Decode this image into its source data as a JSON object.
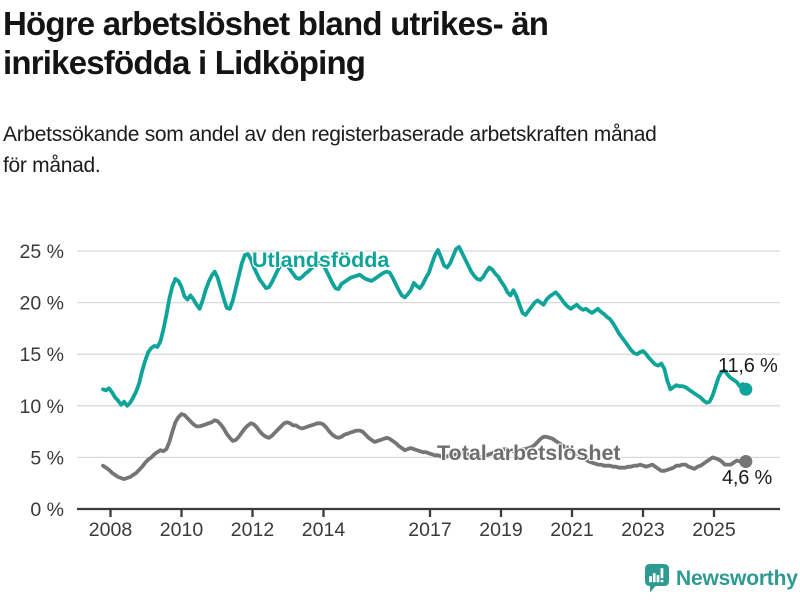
{
  "header": {
    "title_line1": "Högre arbetslöshet bland utrikes- än",
    "title_line2": "inrikesfödda i Lidköping",
    "subtitle_line1": "Arbetssökande som andel av den registerbaserade arbetskraften månad",
    "subtitle_line2": "för månad."
  },
  "branding": {
    "logo_text": "Newsworthy",
    "logo_color": "#2e9a91",
    "logo_icon": "newsworthy-speech-bubble-bar-chart-icon"
  },
  "chart_data": {
    "type": "line",
    "unit": "percent",
    "x_start": "2008-01",
    "x_interval": "month",
    "grid": "horizontal",
    "legend_position": "inline-labels",
    "ylim": [
      0,
      26.5
    ],
    "y_ticks": [
      0,
      5,
      10,
      15,
      20,
      25
    ],
    "y_tick_labels": [
      "0 %",
      "5 %",
      "10 %",
      "15 %",
      "20 %",
      "25 %"
    ],
    "x_tick_years": [
      2008,
      2010,
      2012,
      2014,
      2017,
      2019,
      2021,
      2023,
      2025
    ],
    "x_tick_labels": [
      "2008",
      "2010",
      "2012",
      "2014",
      "2017",
      "2019",
      "2021",
      "2023",
      "2025"
    ],
    "colors": {
      "grid": "#d9d9d9",
      "axis": "#3c3c3c",
      "tick_text": "#3a3a3a",
      "annotation_text": "#1a1a1a"
    },
    "series": [
      {
        "name": "Utlandsfödda",
        "color": "#0fa49a",
        "label_color": "#0fa49a",
        "end_value": 11.6,
        "end_label": "11,6 %",
        "values": [
          11.6,
          11.5,
          11.7,
          11.3,
          10.8,
          10.5,
          10.1,
          10.4,
          10.0,
          10.3,
          10.8,
          11.4,
          12.2,
          13.4,
          14.4,
          15.2,
          15.6,
          15.8,
          15.7,
          16.2,
          17.4,
          18.8,
          20.4,
          21.6,
          22.3,
          22.1,
          21.5,
          20.6,
          20.3,
          20.7,
          20.3,
          19.8,
          19.4,
          20.2,
          21.2,
          22.0,
          22.6,
          23.0,
          22.4,
          21.4,
          20.4,
          19.5,
          19.4,
          20.2,
          21.4,
          22.6,
          23.8,
          24.6,
          24.7,
          24.2,
          23.4,
          22.8,
          22.2,
          21.8,
          21.4,
          21.5,
          22.0,
          22.6,
          23.2,
          23.6,
          23.8,
          23.6,
          23.2,
          22.8,
          22.4,
          22.3,
          22.5,
          22.8,
          23.0,
          23.3,
          23.6,
          23.8,
          23.9,
          23.6,
          23.1,
          22.5,
          21.9,
          21.4,
          21.3,
          21.8,
          22.0,
          22.2,
          22.4,
          22.5,
          22.6,
          22.7,
          22.5,
          22.3,
          22.2,
          22.1,
          22.3,
          22.5,
          22.7,
          22.9,
          23.0,
          22.9,
          22.4,
          21.8,
          21.2,
          20.7,
          20.5,
          20.8,
          21.2,
          21.9,
          21.6,
          21.4,
          21.8,
          22.4,
          22.9,
          23.8,
          24.6,
          25.1,
          24.4,
          23.6,
          23.4,
          23.8,
          24.5,
          25.2,
          25.4,
          24.8,
          24.2,
          23.6,
          23.0,
          22.6,
          22.3,
          22.2,
          22.5,
          23.0,
          23.4,
          23.2,
          22.8,
          22.5,
          22.0,
          21.6,
          21.0,
          20.7,
          21.2,
          20.6,
          19.8,
          19.0,
          18.8,
          19.2,
          19.6,
          20.0,
          20.2,
          20.0,
          19.8,
          20.3,
          20.6,
          20.8,
          21.0,
          20.7,
          20.3,
          19.9,
          19.6,
          19.4,
          19.6,
          19.8,
          19.5,
          19.3,
          19.4,
          19.2,
          19.0,
          19.2,
          19.4,
          19.1,
          18.9,
          18.6,
          18.4,
          18.0,
          17.5,
          17.0,
          16.6,
          16.2,
          15.8,
          15.4,
          15.1,
          15.0,
          15.2,
          15.3,
          15.0,
          14.6,
          14.3,
          14.0,
          13.9,
          14.1,
          13.6,
          12.4,
          11.6,
          11.8,
          12.0,
          11.9,
          11.9,
          11.8,
          11.6,
          11.4,
          11.2,
          11.0,
          10.8,
          10.5,
          10.3,
          10.4,
          11.0,
          11.9,
          12.8,
          13.3,
          13.4,
          13.0,
          12.7,
          12.5,
          12.3,
          11.9,
          12.1,
          11.6
        ]
      },
      {
        "name": "Total arbetslöshet",
        "color": "#757575",
        "label_color": "#6e6e6e",
        "end_value": 4.6,
        "end_label": "4,6 %",
        "values": [
          4.2,
          4.0,
          3.8,
          3.5,
          3.3,
          3.1,
          3.0,
          2.9,
          3.0,
          3.1,
          3.3,
          3.5,
          3.8,
          4.1,
          4.5,
          4.8,
          5.0,
          5.3,
          5.5,
          5.7,
          5.6,
          5.8,
          6.5,
          7.5,
          8.4,
          8.9,
          9.2,
          9.1,
          8.8,
          8.5,
          8.2,
          8.0,
          8.0,
          8.1,
          8.2,
          8.3,
          8.4,
          8.6,
          8.5,
          8.2,
          7.8,
          7.3,
          6.9,
          6.6,
          6.7,
          7.0,
          7.4,
          7.8,
          8.1,
          8.3,
          8.2,
          7.9,
          7.5,
          7.2,
          7.0,
          6.9,
          7.1,
          7.4,
          7.7,
          8.0,
          8.3,
          8.4,
          8.3,
          8.1,
          8.1,
          7.9,
          7.8,
          7.9,
          8.0,
          8.1,
          8.2,
          8.3,
          8.3,
          8.2,
          7.9,
          7.5,
          7.2,
          7.0,
          6.9,
          7.0,
          7.2,
          7.3,
          7.4,
          7.5,
          7.6,
          7.6,
          7.5,
          7.2,
          6.9,
          6.7,
          6.5,
          6.6,
          6.7,
          6.8,
          6.9,
          6.8,
          6.6,
          6.4,
          6.1,
          5.9,
          5.7,
          5.8,
          5.9,
          5.8,
          5.7,
          5.6,
          5.5,
          5.5,
          5.4,
          5.3,
          5.2,
          5.2,
          5.1,
          5.0,
          5.1,
          5.2,
          5.2,
          5.3,
          5.3,
          5.4,
          5.4,
          5.3,
          5.2,
          5.1,
          5.0,
          5.0,
          5.1,
          5.2,
          5.3,
          5.4,
          5.5,
          5.6,
          5.7,
          5.8,
          5.8,
          5.7,
          5.6,
          5.6,
          5.7,
          5.8,
          5.8,
          5.9,
          6.0,
          6.2,
          6.5,
          6.8,
          7.0,
          7.0,
          6.9,
          6.8,
          6.6,
          6.4,
          6.2,
          6.0,
          5.8,
          5.6,
          5.5,
          5.3,
          5.1,
          4.9,
          4.8,
          4.6,
          4.5,
          4.4,
          4.3,
          4.3,
          4.2,
          4.2,
          4.2,
          4.1,
          4.1,
          4.0,
          4.0,
          4.0,
          4.1,
          4.1,
          4.2,
          4.2,
          4.3,
          4.2,
          4.1,
          4.2,
          4.3,
          4.1,
          3.9,
          3.7,
          3.7,
          3.8,
          3.9,
          4.0,
          4.2,
          4.2,
          4.3,
          4.3,
          4.1,
          4.0,
          3.9,
          4.1,
          4.2,
          4.4,
          4.6,
          4.8,
          5.0,
          4.9,
          4.8,
          4.6,
          4.3,
          4.3,
          4.3,
          4.5,
          4.7,
          4.6,
          4.5,
          4.6
        ]
      }
    ]
  }
}
